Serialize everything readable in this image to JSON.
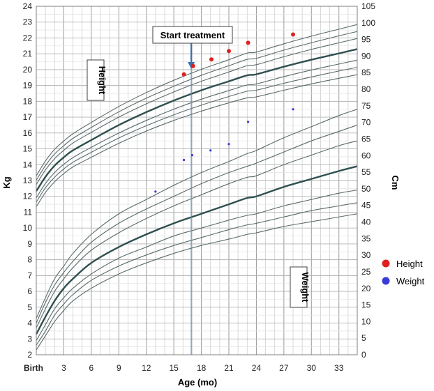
{
  "chart_data": {
    "type": "scatter",
    "title": "",
    "left_axis": {
      "label": "Kg",
      "range": [
        2,
        24
      ],
      "ticks": [
        2,
        3,
        4,
        5,
        6,
        7,
        8,
        9,
        10,
        11,
        12,
        13,
        14,
        15,
        16,
        17,
        18,
        19,
        20,
        21,
        22,
        23,
        24
      ]
    },
    "right_axis": {
      "label": "Cm",
      "range": [
        0,
        105
      ],
      "ticks": [
        0,
        5,
        10,
        15,
        20,
        25,
        30,
        35,
        40,
        45,
        50,
        55,
        60,
        65,
        70,
        75,
        80,
        85,
        90,
        95,
        100,
        105
      ]
    },
    "x_axis": {
      "label": "Age (mo)",
      "range": [
        0,
        35
      ],
      "ticks": [
        {
          "value": 0,
          "label": "Birth"
        },
        {
          "value": 3,
          "label": "3"
        },
        {
          "value": 6,
          "label": "6"
        },
        {
          "value": 9,
          "label": "9"
        },
        {
          "value": 12,
          "label": "12"
        },
        {
          "value": 15,
          "label": "15"
        },
        {
          "value": 18,
          "label": "18"
        },
        {
          "value": 21,
          "label": "21"
        },
        {
          "value": 24,
          "label": "24"
        },
        {
          "value": 27,
          "label": "27"
        },
        {
          "value": 30,
          "label": "30"
        },
        {
          "value": 33,
          "label": "33"
        }
      ]
    },
    "grid": true,
    "region_labels": {
      "height": "Height",
      "weight": "Weight"
    },
    "annotation": {
      "label": "Start treatment",
      "x": 16.9
    },
    "legend": {
      "position": "right",
      "entries": [
        {
          "name": "Height",
          "color": "#e02020"
        },
        {
          "name": "Weight",
          "color": "#3a3ad8"
        }
      ]
    },
    "series": [
      {
        "name": "Height",
        "axis": "right",
        "color": "#e02020",
        "points": [
          [
            16.1,
            84.5
          ],
          [
            17.1,
            87.0
          ],
          [
            19.1,
            89.0
          ],
          [
            21.0,
            91.5
          ],
          [
            23.1,
            94.0
          ],
          [
            28.0,
            96.5
          ]
        ]
      },
      {
        "name": "Weight",
        "axis": "left",
        "color": "#3a3ad8",
        "points": [
          [
            13.0,
            12.3
          ],
          [
            16.1,
            14.3
          ],
          [
            17.0,
            14.6
          ],
          [
            19.0,
            14.9
          ],
          [
            21.0,
            15.3
          ],
          [
            23.1,
            16.7
          ],
          [
            28.0,
            17.5
          ]
        ]
      }
    ],
    "reference_curves": {
      "height_cm": {
        "ages": [
          0,
          1,
          2,
          3,
          4,
          6,
          9,
          12,
          15,
          18,
          21,
          23,
          24,
          27,
          30,
          33,
          35
        ],
        "lines": [
          {
            "major": false,
            "values": [
              44.6,
              48.9,
              52.1,
              54.6,
              56.6,
              59.5,
              63.7,
              67.4,
              70.6,
              73.4,
              75.9,
              77.4,
              77.7,
              79.7,
              81.6,
              83.3,
              84.4
            ]
          },
          {
            "major": false,
            "values": [
              46.0,
              50.3,
              53.5,
              56.0,
              58.0,
              61.0,
              65.3,
              69.0,
              72.3,
              75.2,
              77.8,
              79.4,
              79.7,
              81.8,
              83.7,
              85.5,
              86.6
            ]
          },
          {
            "major": false,
            "values": [
              47.3,
              51.6,
              54.9,
              57.4,
              59.4,
              62.5,
              66.8,
              70.6,
              74.0,
              77.0,
              79.6,
              81.3,
              81.6,
              83.8,
              85.8,
              87.6,
              88.8
            ]
          },
          {
            "major": true,
            "values": [
              49.3,
              53.6,
              57.0,
              59.5,
              61.6,
              64.7,
              69.2,
              73.1,
              76.6,
              79.7,
              82.4,
              84.2,
              84.5,
              86.8,
              88.9,
              90.8,
              92.1
            ]
          },
          {
            "major": false,
            "values": [
              51.3,
              55.7,
              59.1,
              61.6,
              63.8,
              67.0,
              71.6,
              75.6,
              79.2,
              82.4,
              85.2,
              87.1,
              87.4,
              89.8,
              92.0,
              94.0,
              95.3
            ]
          },
          {
            "major": false,
            "values": [
              52.6,
              57.0,
              60.5,
              63.0,
              65.2,
              68.5,
              73.2,
              77.3,
              80.9,
              84.2,
              87.1,
              89.0,
              89.3,
              91.8,
              94.0,
              96.1,
              97.4
            ]
          },
          {
            "major": false,
            "values": [
              53.9,
              58.4,
              61.9,
              64.4,
              66.6,
              70.0,
              74.8,
              79.0,
              82.7,
              86.0,
              88.9,
              90.9,
              91.2,
              93.7,
              96.0,
              98.1,
              99.5
            ]
          }
        ]
      },
      "weight_kg": {
        "ages": [
          0,
          1,
          2,
          3,
          4,
          6,
          9,
          12,
          15,
          18,
          21,
          23,
          24,
          27,
          30,
          33,
          35
        ],
        "lines": [
          {
            "major": false,
            "values": [
              2.3,
              3.2,
              4.1,
              4.8,
              5.4,
              6.2,
              7.1,
              7.8,
              8.4,
              8.9,
              9.3,
              9.6,
              9.7,
              10.1,
              10.4,
              10.7,
              10.9
            ]
          },
          {
            "major": false,
            "values": [
              2.6,
              3.5,
              4.5,
              5.2,
              5.8,
              6.7,
              7.6,
              8.3,
              8.9,
              9.4,
              9.9,
              10.2,
              10.3,
              10.7,
              11.1,
              11.4,
              11.6
            ]
          },
          {
            "major": false,
            "values": [
              2.9,
              3.9,
              4.9,
              5.6,
              6.2,
              7.1,
              8.1,
              8.8,
              9.5,
              10.0,
              10.5,
              10.8,
              10.9,
              11.4,
              11.8,
              12.2,
              12.4
            ]
          },
          {
            "major": true,
            "values": [
              3.3,
              4.4,
              5.4,
              6.2,
              6.8,
              7.8,
              8.8,
              9.6,
              10.3,
              10.9,
              11.5,
              11.9,
              12.0,
              12.6,
              13.1,
              13.6,
              13.9
            ]
          },
          {
            "major": false,
            "values": [
              3.7,
              4.9,
              6.0,
              6.8,
              7.5,
              8.6,
              9.7,
              10.6,
              11.4,
              12.1,
              12.8,
              13.2,
              13.3,
              14.0,
              14.6,
              15.2,
              15.5
            ]
          },
          {
            "major": false,
            "values": [
              4.0,
              5.3,
              6.4,
              7.2,
              7.9,
              9.1,
              10.3,
              11.2,
              12.0,
              12.8,
              13.5,
              13.9,
              14.1,
              14.8,
              15.5,
              16.1,
              16.5
            ]
          },
          {
            "major": false,
            "values": [
              4.3,
              5.6,
              6.8,
              7.6,
              8.4,
              9.6,
              10.9,
              11.8,
              12.7,
              13.5,
              14.2,
              14.7,
              14.9,
              15.7,
              16.4,
              17.1,
              17.5
            ]
          }
        ]
      }
    }
  }
}
